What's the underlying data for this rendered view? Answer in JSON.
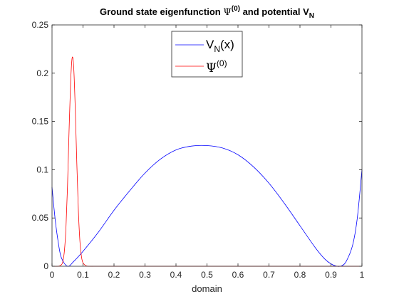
{
  "chart_data": {
    "type": "line",
    "title": {
      "prefix": "Ground state eigenfunction ",
      "psi": "Ψ",
      "psi_sup": "(0)",
      "middle": " and potential V",
      "v_sub": "N"
    },
    "xlabel": "domain",
    "ylabel": "",
    "xlim": [
      0,
      1
    ],
    "ylim": [
      0,
      0.25
    ],
    "xticks": [
      "0",
      "0.1",
      "0.2",
      "0.3",
      "0.4",
      "0.5",
      "0.6",
      "0.7",
      "0.8",
      "0.9",
      "1"
    ],
    "yticks": [
      "0",
      "0.05",
      "0.1",
      "0.15",
      "0.2",
      "0.25"
    ],
    "grid": false,
    "legend_position": "top-center",
    "series": [
      {
        "name": "V_N(x)",
        "legend": {
          "main": "V",
          "sub": "N",
          "tail": "(x)"
        },
        "color": "#0000ff",
        "x": [
          0,
          0.01,
          0.02,
          0.03,
          0.05,
          0.07,
          0.1,
          0.15,
          0.2,
          0.25,
          0.3,
          0.35,
          0.4,
          0.45,
          0.5,
          0.55,
          0.6,
          0.65,
          0.7,
          0.75,
          0.8,
          0.85,
          0.88,
          0.9,
          0.92,
          0.935,
          0.95,
          0.97,
          0.985,
          1
        ],
        "y": [
          0.082,
          0.049,
          0.025,
          0.009,
          0.0,
          0.005,
          0.0155,
          0.0355,
          0.058,
          0.078,
          0.0965,
          0.111,
          0.1205,
          0.1245,
          0.125,
          0.1225,
          0.1155,
          0.103,
          0.086,
          0.065,
          0.042,
          0.019,
          0.0075,
          0.0025,
          0.0,
          0.0005,
          0.0055,
          0.022,
          0.05,
          0.1
        ]
      },
      {
        "name": "Ψ^(0)",
        "legend": {
          "main": "Ψ",
          "sup": "(0)"
        },
        "color": "#ff0000",
        "x": [
          0,
          0.02,
          0.03,
          0.035,
          0.04,
          0.045,
          0.05,
          0.055,
          0.06,
          0.065,
          0.07,
          0.075,
          0.08,
          0.085,
          0.09,
          0.095,
          0.1,
          0.11,
          0.12,
          0.15,
          0.2,
          0.3,
          0.5,
          0.7,
          0.9,
          1
        ],
        "y": [
          0,
          0.0,
          0.0015,
          0.005,
          0.016,
          0.04,
          0.083,
          0.14,
          0.19,
          0.216,
          0.206,
          0.163,
          0.107,
          0.058,
          0.026,
          0.01,
          0.0035,
          0.0005,
          0.0,
          0.0,
          0.0,
          0.0,
          0.0,
          0.0,
          0.0,
          0.0
        ]
      }
    ]
  }
}
